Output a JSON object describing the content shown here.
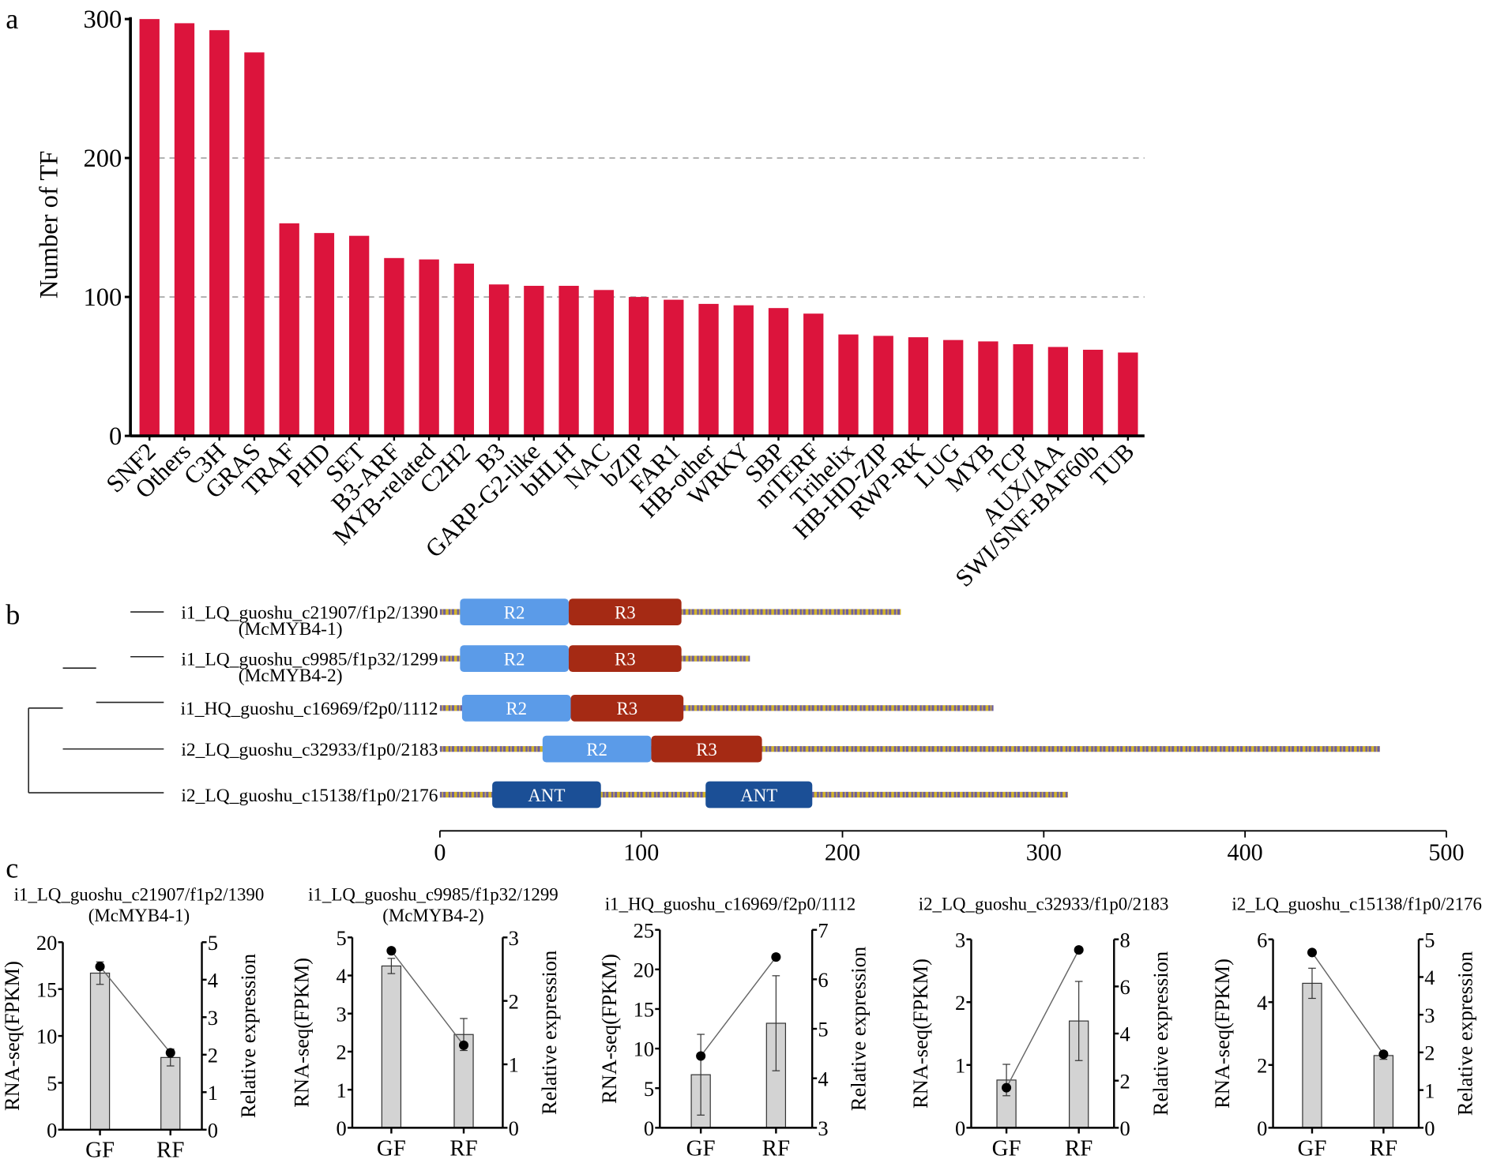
{
  "chart_data": [
    {
      "type": "bar",
      "panel_label": "a",
      "ylabel": "Number of TF",
      "xlabel": "",
      "ylim": [
        0,
        300
      ],
      "yticks": [
        0,
        100,
        200,
        300
      ],
      "grid": "dashed at 100 and 200",
      "bar_color": "#dc143c",
      "categories": [
        "SNF2",
        "Others",
        "C3H",
        "GRAS",
        "TRAF",
        "PHD",
        "SET",
        "B3-ARF",
        "MYB-related",
        "C2H2",
        "B3",
        "GARP-G2-like",
        "bHLH",
        "NAC",
        "bZIP",
        "FAR1",
        "HB-other",
        "WRKY",
        "SBP",
        "mTERF",
        "Trihelix",
        "HB-HD-ZIP",
        "RWP-RK",
        "LUG",
        "MYB",
        "TCP",
        "AUX/IAA",
        "SWI/SNF-BAF60b",
        "TUB"
      ],
      "values": [
        300,
        297,
        292,
        276,
        153,
        146,
        144,
        128,
        127,
        124,
        109,
        108,
        108,
        105,
        100,
        98,
        95,
        94,
        92,
        88,
        73,
        72,
        71,
        69,
        68,
        66,
        64,
        62,
        60
      ]
    },
    {
      "type": "domain-diagram",
      "panel_label": "b",
      "xlim": [
        0,
        500
      ],
      "xticks": [
        0,
        100,
        200,
        300,
        400,
        500
      ],
      "colors": {
        "R2": "#5b9be8",
        "R3": "#a52a14",
        "ANT": "#1b4f96",
        "stripe_a": "#d1b32c",
        "stripe_b": "#6d5e9e"
      },
      "rows": [
        {
          "label": "i1_LQ_guoshu_c21907/f1p2/1390",
          "sublabel": "(McMYB4-1)",
          "length": 229,
          "domains": [
            {
              "name": "R2",
              "start": 10,
              "end": 64
            },
            {
              "name": "R3",
              "start": 64,
              "end": 120
            }
          ]
        },
        {
          "label": "i1_LQ_guoshu_c9985/f1p32/1299",
          "sublabel": "(McMYB4-2)",
          "length": 154,
          "domains": [
            {
              "name": "R2",
              "start": 10,
              "end": 64
            },
            {
              "name": "R3",
              "start": 64,
              "end": 120
            }
          ]
        },
        {
          "label": "i1_HQ_guoshu_c16969/f2p0/1112",
          "sublabel": "",
          "length": 275,
          "domains": [
            {
              "name": "R2",
              "start": 11,
              "end": 65
            },
            {
              "name": "R3",
              "start": 65,
              "end": 121
            }
          ]
        },
        {
          "label": "i2_LQ_guoshu_c32933/f1p0/2183",
          "sublabel": "",
          "length": 467,
          "domains": [
            {
              "name": "R2",
              "start": 51,
              "end": 105
            },
            {
              "name": "R3",
              "start": 105,
              "end": 160
            }
          ]
        },
        {
          "label": "i2_LQ_guoshu_c15138/f1p0/2176",
          "sublabel": "",
          "length": 312,
          "domains": [
            {
              "name": "ANT",
              "start": 26,
              "end": 80
            },
            {
              "name": "ANT",
              "start": 132,
              "end": 185
            }
          ]
        }
      ]
    },
    {
      "type": "bar+line",
      "panel_label": "c",
      "bar_color": "#d3d3d3",
      "plots": [
        {
          "title": "i1_LQ_guoshu_c21907/f1p2/1390",
          "subtitle": "(McMYB4-1)",
          "categories": [
            "GF",
            "RF"
          ],
          "ylabel": "RNA-seq(FPKM)",
          "y2label": "Relative expression",
          "ylim": [
            0,
            20
          ],
          "yticks": [
            0,
            5,
            10,
            15,
            20
          ],
          "y2lim": [
            0,
            5
          ],
          "y2ticks": [
            0,
            1,
            2,
            3,
            4,
            5
          ],
          "fpkm": [
            16.7,
            7.7
          ],
          "fpkm_error": [
            1.2,
            0.9
          ],
          "relative": [
            4.35,
            2.05
          ]
        },
        {
          "title": "i1_LQ_guoshu_c9985/f1p32/1299",
          "subtitle": "(McMYB4-2)",
          "categories": [
            "GF",
            "RF"
          ],
          "ylabel": "RNA-seq(FPKM)",
          "y2label": "Relative expression",
          "ylim": [
            0,
            5
          ],
          "yticks": [
            0,
            1,
            2,
            3,
            4,
            5
          ],
          "y2lim": [
            0,
            3
          ],
          "y2ticks": [
            0,
            1,
            2,
            3
          ],
          "fpkm": [
            4.25,
            2.45
          ],
          "fpkm_error": [
            0.2,
            0.42
          ],
          "relative": [
            2.79,
            1.3
          ]
        },
        {
          "title": "i1_HQ_guoshu_c16969/f2p0/1112",
          "subtitle": "",
          "categories": [
            "GF",
            "RF"
          ],
          "ylabel": "RNA-seq(FPKM)",
          "y2label": "Relative expression",
          "ylim": [
            0,
            25
          ],
          "yticks": [
            0,
            5,
            10,
            15,
            20,
            25
          ],
          "y2lim": [
            3,
            7
          ],
          "y2ticks": [
            3,
            4,
            5,
            6,
            7
          ],
          "fpkm": [
            6.7,
            13.2
          ],
          "fpkm_error": [
            5.1,
            6.0
          ],
          "relative": [
            4.45,
            6.45
          ]
        },
        {
          "title": "i2_LQ_guoshu_c32933/f1p0/2183",
          "subtitle": "",
          "categories": [
            "GF",
            "RF"
          ],
          "ylabel": "RNA-seq(FPKM)",
          "y2label": "Relative expression",
          "ylim": [
            0,
            3
          ],
          "yticks": [
            0,
            1,
            2,
            3
          ],
          "y2lim": [
            0,
            8
          ],
          "y2ticks": [
            0,
            2,
            4,
            6,
            8
          ],
          "fpkm": [
            0.76,
            1.7
          ],
          "fpkm_error": [
            0.25,
            0.63
          ],
          "relative": [
            1.7,
            7.55
          ]
        },
        {
          "title": "i2_LQ_guoshu_c15138/f1p0/2176",
          "subtitle": "",
          "categories": [
            "GF",
            "RF"
          ],
          "ylabel": "RNA-seq(FPKM)",
          "y2label": "Relative expression",
          "ylim": [
            0,
            6
          ],
          "yticks": [
            0,
            2,
            4,
            6
          ],
          "y2lim": [
            0,
            5
          ],
          "y2ticks": [
            0,
            1,
            2,
            3,
            4,
            5
          ],
          "fpkm": [
            4.6,
            2.3
          ],
          "fpkm_error": [
            0.48,
            0.12
          ],
          "relative": [
            4.65,
            1.95
          ]
        }
      ]
    }
  ]
}
